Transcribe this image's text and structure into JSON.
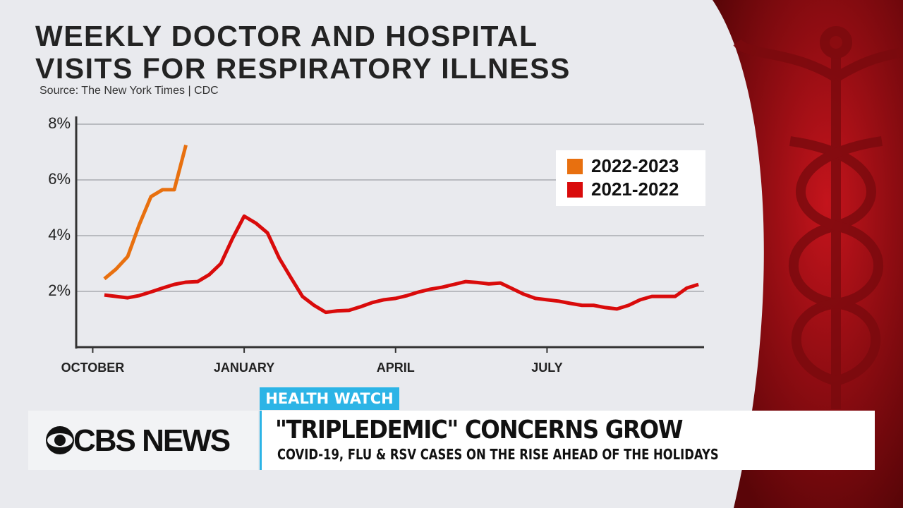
{
  "chart_data": {
    "type": "line",
    "title": "WEEKLY DOCTOR AND HOSPITAL VISITS FOR RESPIRATORY ILLNESS",
    "subtitle": "Source: The New York Times | CDC",
    "x": [
      1,
      2,
      3,
      4,
      5,
      6,
      7,
      8,
      9,
      10,
      11,
      12,
      13,
      14,
      15,
      16,
      17,
      18,
      19,
      20,
      21,
      22,
      23,
      24,
      25,
      26,
      27,
      28,
      29,
      30,
      31,
      32,
      33,
      34,
      35,
      36,
      37,
      38,
      39,
      40,
      41,
      42,
      43,
      44,
      45,
      46,
      47,
      48,
      49,
      50,
      51,
      52
    ],
    "xlim": [
      -1.42,
      52.48
    ],
    "xticks": [
      {
        "value": 0,
        "label": "OCTOBER"
      },
      {
        "value": 13,
        "label": "JANUARY"
      },
      {
        "value": 26,
        "label": "APRIL"
      },
      {
        "value": 39,
        "label": "JULY"
      }
    ],
    "ylim": [
      0,
      8
    ],
    "yticks": [
      {
        "value": 2,
        "label": "2%"
      },
      {
        "value": 4,
        "label": "4%"
      },
      {
        "value": 6,
        "label": "6%"
      },
      {
        "value": 8,
        "label": "8%"
      }
    ],
    "grid": true,
    "legend": "upper right",
    "series": [
      {
        "name": "2022-2023",
        "color": "#e8700f",
        "values": [
          2.45,
          2.8,
          3.25,
          4.4,
          5.4,
          5.65,
          5.65,
          7.25,
          null,
          null,
          null,
          null,
          null,
          null,
          null,
          null,
          null,
          null,
          null,
          null,
          null,
          null,
          null,
          null,
          null,
          null,
          null,
          null,
          null,
          null,
          null,
          null,
          null,
          null,
          null,
          null,
          null,
          null,
          null,
          null,
          null,
          null,
          null,
          null,
          null,
          null,
          null,
          null,
          null,
          null,
          null,
          null
        ]
      },
      {
        "name": "2021-2022",
        "color": "#d90b0b",
        "values": [
          1.87,
          1.82,
          1.77,
          1.85,
          1.98,
          2.12,
          2.25,
          2.33,
          2.35,
          2.6,
          3.0,
          3.9,
          4.7,
          4.45,
          4.1,
          3.2,
          2.5,
          1.82,
          1.5,
          1.25,
          1.3,
          1.32,
          1.45,
          1.6,
          1.7,
          1.75,
          1.85,
          1.98,
          2.08,
          2.15,
          2.25,
          2.35,
          2.32,
          2.27,
          2.3,
          2.1,
          1.9,
          1.75,
          1.7,
          1.65,
          1.57,
          1.5,
          1.5,
          1.42,
          1.37,
          1.5,
          1.7,
          1.82,
          1.82,
          1.82,
          2.12,
          2.25
        ]
      }
    ]
  },
  "banner": {
    "tag": "HEALTH WATCH",
    "headline": "\"TRIPLEDEMIC\" CONCERNS GROW",
    "subheadline": "COVID-19, FLU & RSV CASES ON THE RISE AHEAD OF THE HOLIDAYS",
    "network": "CBS NEWS"
  }
}
